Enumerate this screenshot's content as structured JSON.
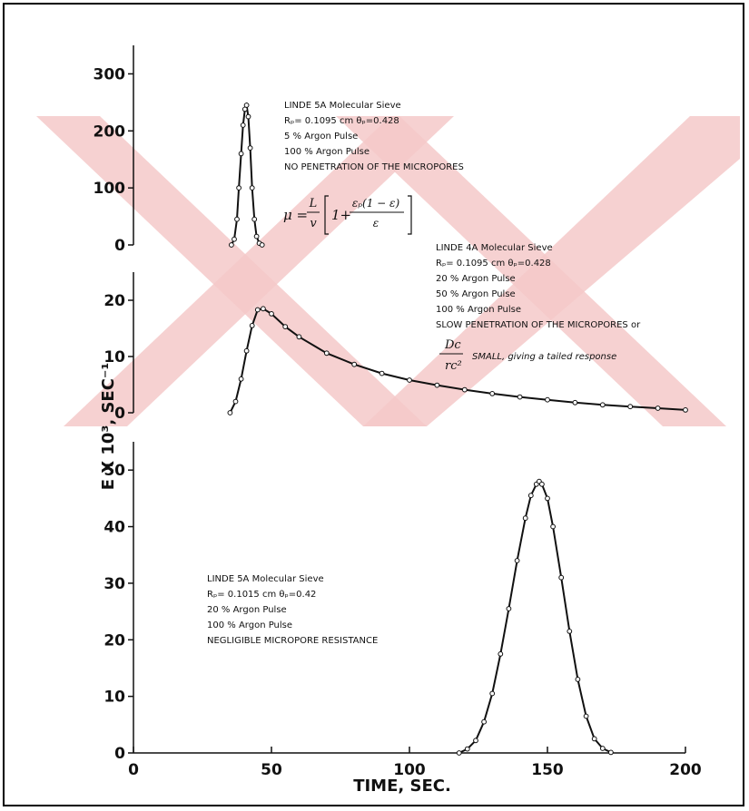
{
  "chart_data": [
    {
      "type": "line",
      "panel": "top",
      "ylim": [
        0,
        350
      ],
      "yticks": [
        "0",
        "100",
        "200",
        "300"
      ],
      "annotation": {
        "lines": [
          "LINDE 5A Molecular Sieve",
          "Rₚ= 0.1095 cm  θₚ=0.428",
          "5 % Argon Pulse",
          "100 % Argon Pulse",
          "NO PENETRATION OF THE MICROPORES"
        ]
      },
      "formula": {
        "lhs": "μ =",
        "frac_num": "L",
        "frac_den": "v",
        "inner_num": "εₚ(1 − ε)",
        "inner_den": "ε"
      },
      "series": [
        {
          "x": [
            35.5,
            36.5,
            37.5,
            38.2,
            39,
            39.7,
            40.4,
            41,
            41.6,
            42.3,
            43,
            43.8,
            44.6,
            45.6,
            46.6
          ],
          "y": [
            0,
            10,
            45,
            100,
            160,
            210,
            238,
            245,
            225,
            170,
            100,
            45,
            15,
            3,
            0
          ]
        }
      ]
    },
    {
      "type": "line",
      "panel": "middle",
      "ylim": [
        0,
        25
      ],
      "yticks": [
        "0",
        "10",
        "20"
      ],
      "annotation": {
        "lines": [
          "LINDE 4A Molecular Sieve",
          "Rₚ= 0.1095 cm  θₚ=0.428",
          "20 % Argon Pulse",
          "50 % Argon Pulse",
          "100 % Argon Pulse",
          "SLOW PENETRATION OF THE MICROPORES or"
        ],
        "small_text": "SMALL, giving a tailed response",
        "dc": "Dc",
        "rc2": "rc²"
      },
      "series": [
        {
          "x": [
            35,
            37,
            39,
            41,
            43,
            45,
            47,
            50,
            55,
            60,
            70,
            80,
            90,
            100,
            110,
            120,
            130,
            140,
            150,
            160,
            170,
            180,
            190,
            200
          ],
          "y": [
            0,
            2,
            6,
            11,
            15.5,
            18.3,
            18.5,
            17.6,
            15.3,
            13.5,
            10.6,
            8.6,
            7.0,
            5.8,
            4.9,
            4.1,
            3.4,
            2.8,
            2.3,
            1.8,
            1.4,
            1.1,
            0.8,
            0.5
          ]
        }
      ]
    },
    {
      "type": "line",
      "panel": "bottom",
      "ylim": [
        0,
        55
      ],
      "yticks": [
        "0",
        "10",
        "20",
        "30",
        "40",
        "50"
      ],
      "annotation": {
        "lines": [
          "LINDE 5A Molecular Sieve",
          "Rₚ= 0.1015 cm  θₚ=0.42",
          "20 % Argon Pulse",
          "100 % Argon Pulse",
          "NEGLIGIBLE MICROPORE RESISTANCE"
        ]
      },
      "series": [
        {
          "x": [
            118,
            121,
            124,
            127,
            130,
            133,
            136,
            139,
            142,
            144,
            146,
            147,
            148,
            150,
            152,
            155,
            158,
            161,
            164,
            167,
            170,
            173
          ],
          "y": [
            0,
            0.7,
            2.2,
            5.5,
            10.5,
            17.5,
            25.5,
            34,
            41.5,
            45.5,
            47.5,
            48,
            47.5,
            45,
            40,
            31,
            21.5,
            13,
            6.5,
            2.5,
            0.8,
            0.1
          ]
        }
      ]
    }
  ],
  "xaxis": {
    "ticks": [
      "0",
      "50",
      "100",
      "150",
      "200"
    ],
    "xlim": [
      0,
      200
    ],
    "label": "TIME, SEC."
  },
  "ylabel": "E X 10³, SEC⁻¹",
  "colors": {
    "ink": "#111111",
    "watermark": "#f4c9c9"
  }
}
